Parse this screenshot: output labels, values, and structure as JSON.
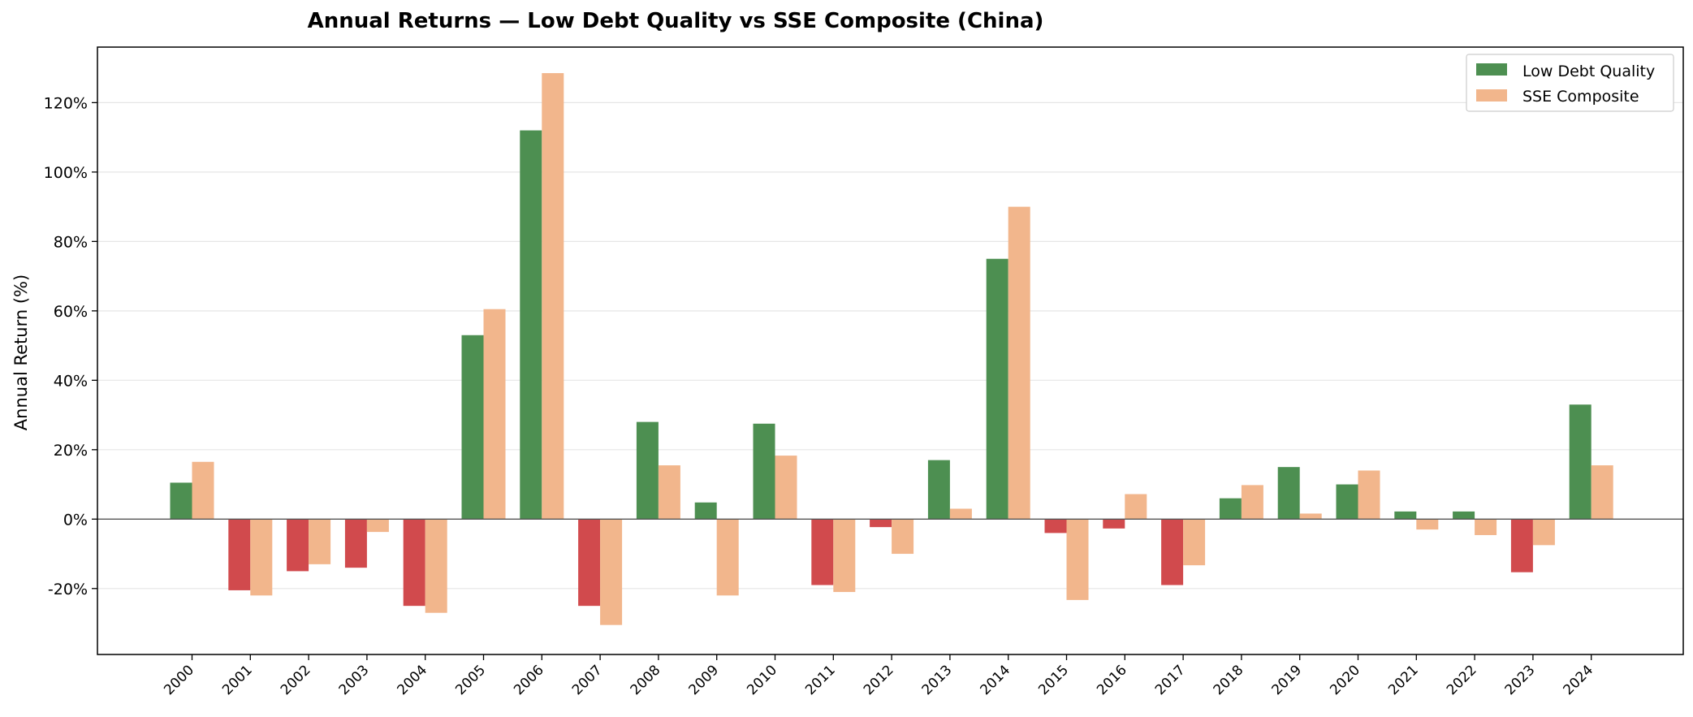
{
  "chart_data": {
    "type": "bar",
    "title": "Annual Returns — Low Debt Quality vs SSE Composite (China)",
    "xlabel": "",
    "ylabel": "Annual Return (%)",
    "ylim": [
      -39,
      136
    ],
    "yticks": [
      -20,
      0,
      20,
      40,
      60,
      80,
      100,
      120
    ],
    "ytick_labels": [
      "-20%",
      "0%",
      "20%",
      "40%",
      "60%",
      "80%",
      "100%",
      "120%"
    ],
    "grid": true,
    "legend_position": "top-right",
    "categories": [
      "2000",
      "2001",
      "2002",
      "2003",
      "2004",
      "2005",
      "2006",
      "2007",
      "2008",
      "2009",
      "2010",
      "2011",
      "2012",
      "2013",
      "2014",
      "2015",
      "2016",
      "2017",
      "2018",
      "2019",
      "2020",
      "2021",
      "2022",
      "2023",
      "2024"
    ],
    "series": [
      {
        "name": "Low Debt Quality",
        "color_positive": "#4d8f51",
        "color_negative": "#d14a4d",
        "values": [
          10.5,
          -20.5,
          -15,
          -14,
          -25,
          53,
          112,
          -25,
          28,
          4.8,
          27.5,
          -19,
          -2.3,
          17,
          75,
          -4,
          -2.7,
          -19,
          6,
          15,
          10,
          2.2,
          2.2,
          -15.3,
          33
        ]
      },
      {
        "name": "SSE Composite",
        "color": "#f2b68c",
        "values": [
          16.5,
          -22,
          -13,
          -3.7,
          -27,
          60.5,
          128.5,
          -30.5,
          15.5,
          -22,
          18.3,
          -21,
          -10,
          3,
          90,
          -23.3,
          7.2,
          -13.3,
          9.8,
          1.6,
          14,
          -3,
          -4.6,
          -7.5,
          15.5
        ]
      }
    ]
  },
  "colors": {
    "axis": "#000000",
    "grid": "#e6e6e6",
    "zero_line": "#555555",
    "legend_border": "#cccccc"
  }
}
